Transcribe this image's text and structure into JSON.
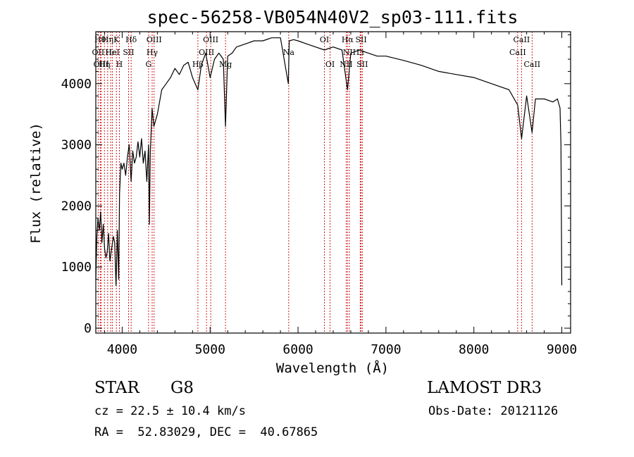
{
  "chart_data": {
    "type": "line",
    "title": "spec-56258-VB054N40V2_sp03-111.fits",
    "xlabel": "Wavelength (Å)",
    "ylabel": "Flux (relative)",
    "xlim": [
      3700,
      9100
    ],
    "ylim": [
      -80,
      4850
    ],
    "xticks": [
      4000,
      5000,
      6000,
      7000,
      8000,
      9000
    ],
    "yticks": [
      0,
      1000,
      2000,
      3000,
      4000
    ],
    "xtick_labels": [
      "4000",
      "5000",
      "6000",
      "7000",
      "8000",
      "9000"
    ],
    "ytick_labels": [
      "0",
      "1000",
      "2000",
      "3000",
      "4000"
    ],
    "series": [
      {
        "name": "flux",
        "x": [
          3700,
          3712,
          3725,
          3740,
          3755,
          3770,
          3785,
          3800,
          3815,
          3830,
          3845,
          3860,
          3880,
          3900,
          3915,
          3930,
          3945,
          3960,
          3970,
          3985,
          4000,
          4020,
          4040,
          4060,
          4080,
          4101,
          4120,
          4140,
          4160,
          4180,
          4200,
          4220,
          4240,
          4260,
          4280,
          4300,
          4310,
          4320,
          4340,
          4360,
          4380,
          4400,
          4450,
          4500,
          4550,
          4600,
          4650,
          4700,
          4750,
          4800,
          4861,
          4900,
          4950,
          5000,
          5050,
          5100,
          5150,
          5175,
          5200,
          5250,
          5300,
          5400,
          5500,
          5600,
          5700,
          5800,
          5890,
          5900,
          5950,
          6000,
          6100,
          6200,
          6300,
          6400,
          6500,
          6563,
          6600,
          6700,
          6800,
          6900,
          7000,
          7200,
          7400,
          7600,
          7800,
          8000,
          8200,
          8400,
          8498,
          8542,
          8600,
          8662,
          8700,
          8800,
          8900,
          8950,
          8980,
          8990,
          9000
        ],
        "y": [
          800,
          1500,
          1800,
          1600,
          1900,
          1400,
          1700,
          1300,
          1150,
          1250,
          1550,
          1100,
          1300,
          1500,
          1400,
          700,
          1600,
          800,
          2200,
          2700,
          2600,
          2700,
          2500,
          2800,
          3000,
          2400,
          2900,
          2700,
          2800,
          3050,
          2800,
          3100,
          2700,
          2900,
          2400,
          3000,
          1700,
          2900,
          3600,
          3300,
          3400,
          3500,
          3900,
          4000,
          4100,
          4250,
          4150,
          4300,
          4350,
          4100,
          3900,
          4300,
          4500,
          4100,
          4400,
          4500,
          4400,
          3300,
          4450,
          4500,
          4600,
          4650,
          4700,
          4700,
          4750,
          4750,
          4000,
          4700,
          4720,
          4700,
          4650,
          4600,
          4550,
          4600,
          4550,
          3900,
          4500,
          4550,
          4500,
          4450,
          4450,
          4380,
          4300,
          4200,
          4150,
          4100,
          4000,
          3900,
          3650,
          3100,
          3800,
          3200,
          3750,
          3750,
          3700,
          3750,
          3600,
          3000,
          700
        ]
      }
    ],
    "lines": [
      {
        "wavelength": 3727,
        "label": "OII",
        "row": 2
      },
      {
        "wavelength": 3750,
        "label": "Hθ",
        "row": 1
      },
      {
        "wavelength": 3760,
        "label": "OIII",
        "row": 3
      },
      {
        "wavelength": 3798,
        "label": "Hη",
        "row": 3
      },
      {
        "wavelength": 3835,
        "label": "Hη",
        "row": 1
      },
      {
        "wavelength": 3869,
        "label": "Hε",
        "row": 2
      },
      {
        "wavelength": 3889,
        "label": "HeI",
        "row": 2
      },
      {
        "wavelength": 3934,
        "label": "K",
        "row": 1
      },
      {
        "wavelength": 3968,
        "label": "H",
        "row": 3
      },
      {
        "wavelength": 4072,
        "label": "SII",
        "row": 2
      },
      {
        "wavelength": 4102,
        "label": "Hδ",
        "row": 1
      },
      {
        "wavelength": 4300,
        "label": "G",
        "row": 3
      },
      {
        "wavelength": 4341,
        "label": "Hγ",
        "row": 2
      },
      {
        "wavelength": 4363,
        "label": "OIII",
        "row": 1
      },
      {
        "wavelength": 4861,
        "label": "Hβ",
        "row": 3
      },
      {
        "wavelength": 4959,
        "label": "OIII",
        "row": 2
      },
      {
        "wavelength": 5007,
        "label": "OIII",
        "row": 1
      },
      {
        "wavelength": 5175,
        "label": "Mg",
        "row": 3
      },
      {
        "wavelength": 5894,
        "label": "Na",
        "row": 2
      },
      {
        "wavelength": 6300,
        "label": "OI",
        "row": 1
      },
      {
        "wavelength": 6364,
        "label": "OI",
        "row": 3
      },
      {
        "wavelength": 6548,
        "label": "NII",
        "row": 3
      },
      {
        "wavelength": 6563,
        "label": "Hα",
        "row": 1
      },
      {
        "wavelength": 6584,
        "label": "NII",
        "row": 2
      },
      {
        "wavelength": 6707,
        "label": "Li",
        "row": 2
      },
      {
        "wavelength": 6717,
        "label": "SII",
        "row": 1
      },
      {
        "wavelength": 6731,
        "label": "SII",
        "row": 3
      },
      {
        "wavelength": 8498,
        "label": "CaII",
        "row": 2
      },
      {
        "wavelength": 8542,
        "label": "CaII",
        "row": 1
      },
      {
        "wavelength": 8662,
        "label": "CaII",
        "row": 3
      }
    ]
  },
  "info": {
    "object_type": "STAR",
    "object_class": "G8",
    "survey": "LAMOST DR3",
    "redshift_text": "cz = 22.5 ± 10.4 km/s",
    "obs_date_text": "Obs-Date: 20121126",
    "coords_text": "RA =  52.83029, DEC =  40.67865"
  },
  "colors": {
    "spectrum": "#000000",
    "line_markers": "#cc0000",
    "axes": "#000000",
    "background": "#ffffff"
  }
}
